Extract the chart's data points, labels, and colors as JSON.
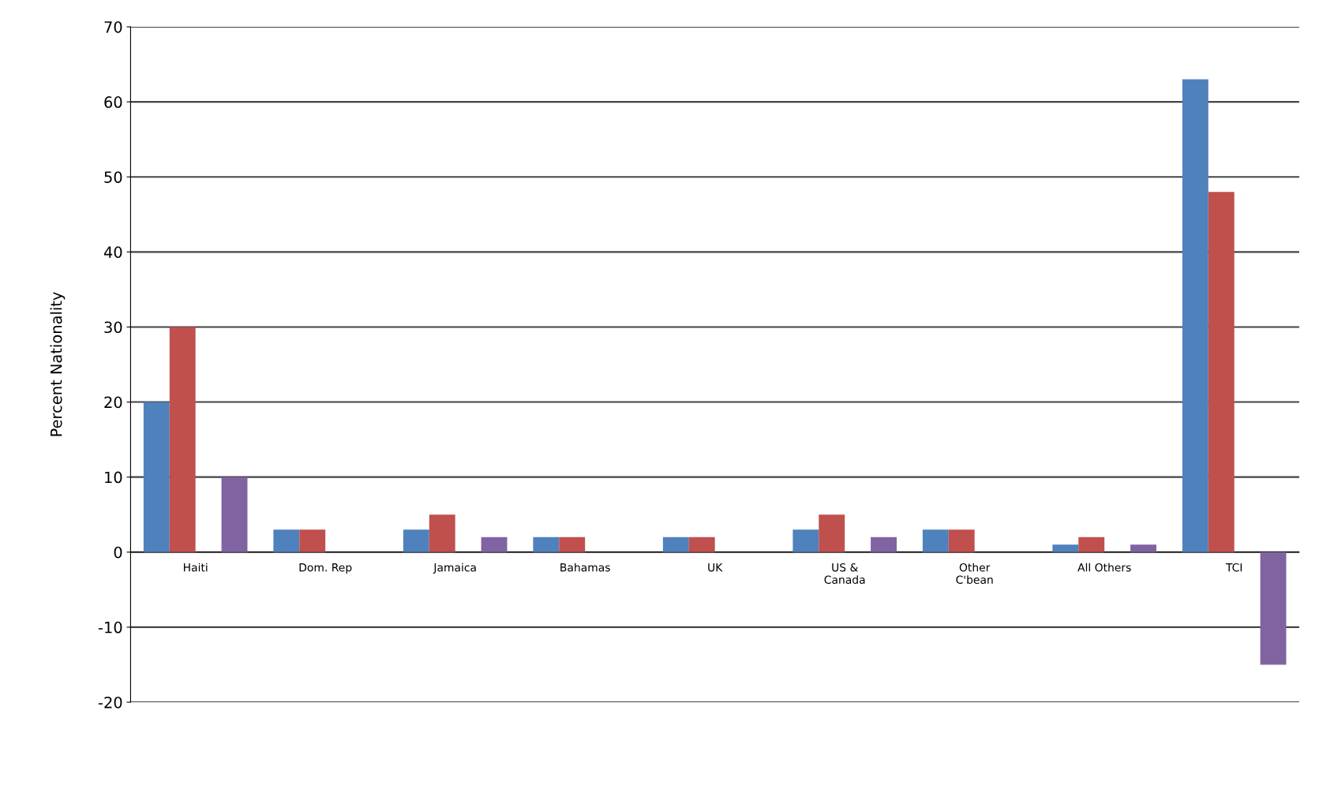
{
  "chart_data": {
    "type": "bar",
    "ylabel": "Percent Nationality",
    "categories": [
      "Haiti",
      "Dom. Rep",
      "Jamaica",
      "Bahamas",
      "UK",
      "US &\nCanada",
      "Other\nC'bean",
      "All Others",
      "TCI"
    ],
    "series": [
      {
        "color": "#4f81bd",
        "values": [
          20,
          3,
          3,
          2,
          2,
          3,
          3,
          1,
          63
        ]
      },
      {
        "color": "#c0504d",
        "values": [
          30,
          3,
          5,
          2,
          2,
          5,
          3,
          2,
          48
        ]
      },
      {
        "values": [
          null,
          null,
          null,
          null,
          null,
          null,
          null,
          null,
          null
        ]
      },
      {
        "color": "#8064a2",
        "values": [
          10,
          null,
          2,
          null,
          null,
          2,
          null,
          1,
          -15
        ]
      }
    ],
    "ylim": [
      -20,
      70
    ],
    "yticks": [
      -20,
      -10,
      0,
      10,
      20,
      30,
      40,
      50,
      60,
      70
    ],
    "grid": "y",
    "legend": false
  }
}
